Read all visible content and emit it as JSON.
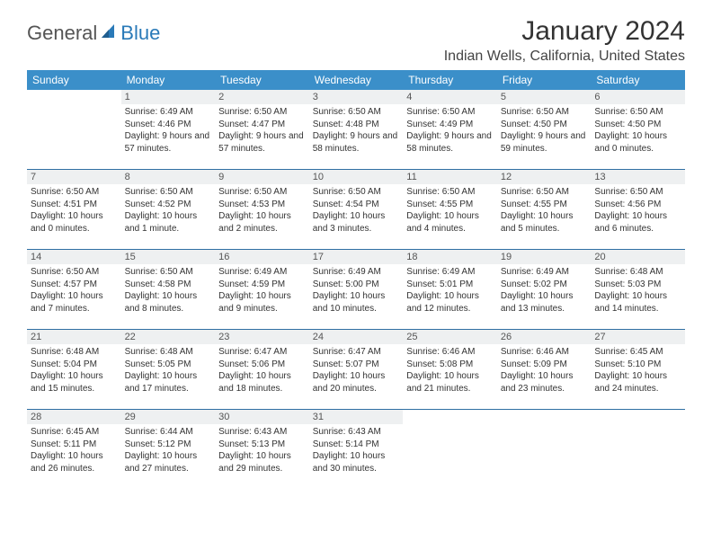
{
  "colors": {
    "header_bg": "#3b8fc9",
    "header_text": "#ffffff",
    "daynum_bg": "#eef0f1",
    "week_border": "#2f6fa3",
    "body_text": "#333333",
    "logo_gray": "#555555",
    "logo_blue": "#2a7ab8"
  },
  "logo": {
    "part1": "General",
    "part2": "Blue"
  },
  "title": "January 2024",
  "location": "Indian Wells, California, United States",
  "weekdays": [
    "Sunday",
    "Monday",
    "Tuesday",
    "Wednesday",
    "Thursday",
    "Friday",
    "Saturday"
  ],
  "weeks": [
    [
      null,
      {
        "n": "1",
        "sr": "Sunrise: 6:49 AM",
        "ss": "Sunset: 4:46 PM",
        "dl": "Daylight: 9 hours and 57 minutes."
      },
      {
        "n": "2",
        "sr": "Sunrise: 6:50 AM",
        "ss": "Sunset: 4:47 PM",
        "dl": "Daylight: 9 hours and 57 minutes."
      },
      {
        "n": "3",
        "sr": "Sunrise: 6:50 AM",
        "ss": "Sunset: 4:48 PM",
        "dl": "Daylight: 9 hours and 58 minutes."
      },
      {
        "n": "4",
        "sr": "Sunrise: 6:50 AM",
        "ss": "Sunset: 4:49 PM",
        "dl": "Daylight: 9 hours and 58 minutes."
      },
      {
        "n": "5",
        "sr": "Sunrise: 6:50 AM",
        "ss": "Sunset: 4:50 PM",
        "dl": "Daylight: 9 hours and 59 minutes."
      },
      {
        "n": "6",
        "sr": "Sunrise: 6:50 AM",
        "ss": "Sunset: 4:50 PM",
        "dl": "Daylight: 10 hours and 0 minutes."
      }
    ],
    [
      {
        "n": "7",
        "sr": "Sunrise: 6:50 AM",
        "ss": "Sunset: 4:51 PM",
        "dl": "Daylight: 10 hours and 0 minutes."
      },
      {
        "n": "8",
        "sr": "Sunrise: 6:50 AM",
        "ss": "Sunset: 4:52 PM",
        "dl": "Daylight: 10 hours and 1 minute."
      },
      {
        "n": "9",
        "sr": "Sunrise: 6:50 AM",
        "ss": "Sunset: 4:53 PM",
        "dl": "Daylight: 10 hours and 2 minutes."
      },
      {
        "n": "10",
        "sr": "Sunrise: 6:50 AM",
        "ss": "Sunset: 4:54 PM",
        "dl": "Daylight: 10 hours and 3 minutes."
      },
      {
        "n": "11",
        "sr": "Sunrise: 6:50 AM",
        "ss": "Sunset: 4:55 PM",
        "dl": "Daylight: 10 hours and 4 minutes."
      },
      {
        "n": "12",
        "sr": "Sunrise: 6:50 AM",
        "ss": "Sunset: 4:55 PM",
        "dl": "Daylight: 10 hours and 5 minutes."
      },
      {
        "n": "13",
        "sr": "Sunrise: 6:50 AM",
        "ss": "Sunset: 4:56 PM",
        "dl": "Daylight: 10 hours and 6 minutes."
      }
    ],
    [
      {
        "n": "14",
        "sr": "Sunrise: 6:50 AM",
        "ss": "Sunset: 4:57 PM",
        "dl": "Daylight: 10 hours and 7 minutes."
      },
      {
        "n": "15",
        "sr": "Sunrise: 6:50 AM",
        "ss": "Sunset: 4:58 PM",
        "dl": "Daylight: 10 hours and 8 minutes."
      },
      {
        "n": "16",
        "sr": "Sunrise: 6:49 AM",
        "ss": "Sunset: 4:59 PM",
        "dl": "Daylight: 10 hours and 9 minutes."
      },
      {
        "n": "17",
        "sr": "Sunrise: 6:49 AM",
        "ss": "Sunset: 5:00 PM",
        "dl": "Daylight: 10 hours and 10 minutes."
      },
      {
        "n": "18",
        "sr": "Sunrise: 6:49 AM",
        "ss": "Sunset: 5:01 PM",
        "dl": "Daylight: 10 hours and 12 minutes."
      },
      {
        "n": "19",
        "sr": "Sunrise: 6:49 AM",
        "ss": "Sunset: 5:02 PM",
        "dl": "Daylight: 10 hours and 13 minutes."
      },
      {
        "n": "20",
        "sr": "Sunrise: 6:48 AM",
        "ss": "Sunset: 5:03 PM",
        "dl": "Daylight: 10 hours and 14 minutes."
      }
    ],
    [
      {
        "n": "21",
        "sr": "Sunrise: 6:48 AM",
        "ss": "Sunset: 5:04 PM",
        "dl": "Daylight: 10 hours and 15 minutes."
      },
      {
        "n": "22",
        "sr": "Sunrise: 6:48 AM",
        "ss": "Sunset: 5:05 PM",
        "dl": "Daylight: 10 hours and 17 minutes."
      },
      {
        "n": "23",
        "sr": "Sunrise: 6:47 AM",
        "ss": "Sunset: 5:06 PM",
        "dl": "Daylight: 10 hours and 18 minutes."
      },
      {
        "n": "24",
        "sr": "Sunrise: 6:47 AM",
        "ss": "Sunset: 5:07 PM",
        "dl": "Daylight: 10 hours and 20 minutes."
      },
      {
        "n": "25",
        "sr": "Sunrise: 6:46 AM",
        "ss": "Sunset: 5:08 PM",
        "dl": "Daylight: 10 hours and 21 minutes."
      },
      {
        "n": "26",
        "sr": "Sunrise: 6:46 AM",
        "ss": "Sunset: 5:09 PM",
        "dl": "Daylight: 10 hours and 23 minutes."
      },
      {
        "n": "27",
        "sr": "Sunrise: 6:45 AM",
        "ss": "Sunset: 5:10 PM",
        "dl": "Daylight: 10 hours and 24 minutes."
      }
    ],
    [
      {
        "n": "28",
        "sr": "Sunrise: 6:45 AM",
        "ss": "Sunset: 5:11 PM",
        "dl": "Daylight: 10 hours and 26 minutes."
      },
      {
        "n": "29",
        "sr": "Sunrise: 6:44 AM",
        "ss": "Sunset: 5:12 PM",
        "dl": "Daylight: 10 hours and 27 minutes."
      },
      {
        "n": "30",
        "sr": "Sunrise: 6:43 AM",
        "ss": "Sunset: 5:13 PM",
        "dl": "Daylight: 10 hours and 29 minutes."
      },
      {
        "n": "31",
        "sr": "Sunrise: 6:43 AM",
        "ss": "Sunset: 5:14 PM",
        "dl": "Daylight: 10 hours and 30 minutes."
      },
      null,
      null,
      null
    ]
  ]
}
